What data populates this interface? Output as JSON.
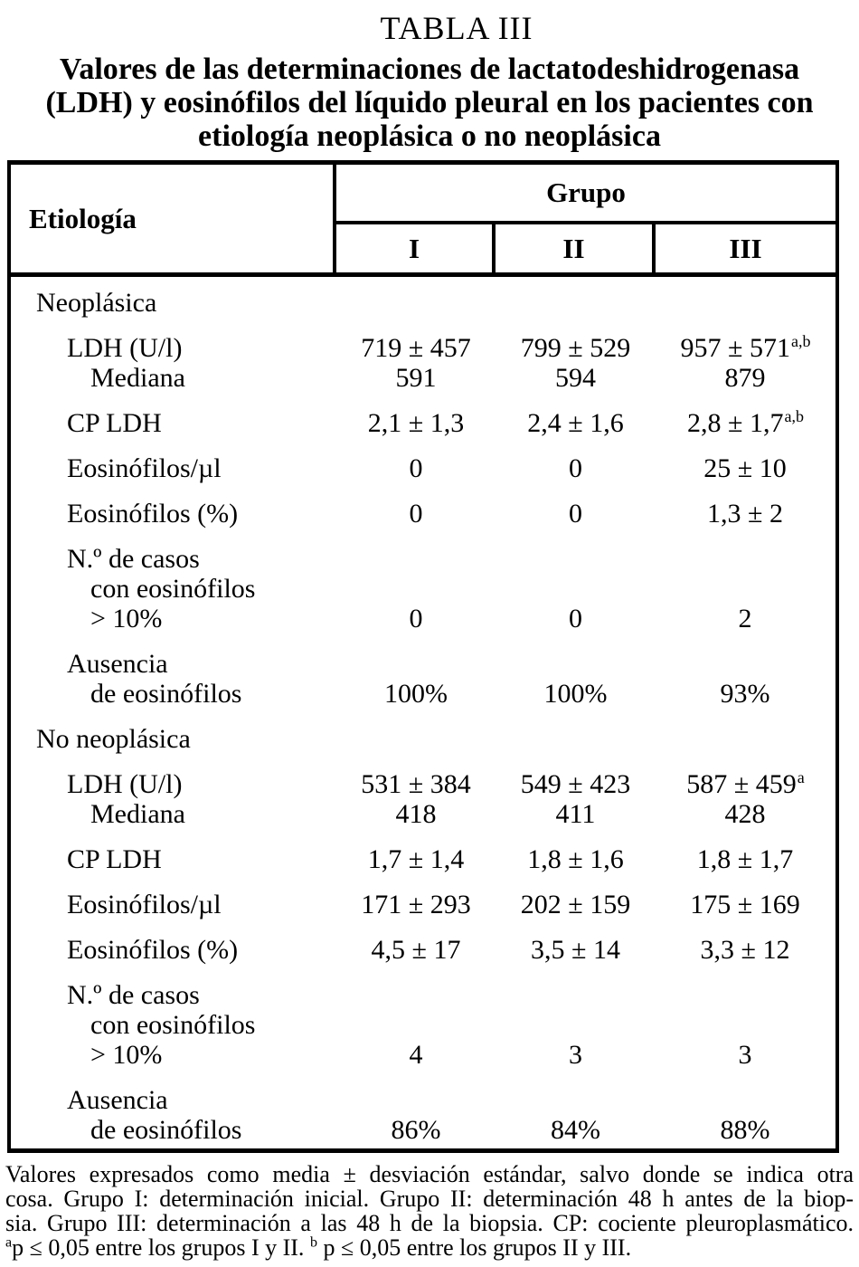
{
  "title": {
    "label": "TABLA III",
    "caption_lines": [
      "Valores de las determinaciones de lactatodeshidrogenasa",
      "(LDH) y eosinófilos del líquido pleural en los pacientes con",
      "etiología neoplásica o no neoplásica"
    ]
  },
  "table": {
    "row_header": "Etiología",
    "group_header": "Grupo",
    "columns": [
      "I",
      "II",
      "III"
    ],
    "rows": [
      {
        "label": "Neoplásica",
        "indent": 0,
        "gap": false,
        "values": [
          "",
          "",
          ""
        ],
        "sup": ""
      },
      {
        "label": "LDH (U/l)",
        "indent": 1,
        "gap": true,
        "values": [
          "719 ± 457",
          "799 ± 529",
          "957 ± 571"
        ],
        "sup": "a,b"
      },
      {
        "label": "Mediana",
        "indent": 2,
        "gap": false,
        "values": [
          "591",
          "594",
          "879"
        ],
        "sup": ""
      },
      {
        "label": "CP LDH",
        "indent": 1,
        "gap": true,
        "values": [
          "2,1 ± 1,3",
          "2,4 ± 1,6",
          "2,8 ± 1,7"
        ],
        "sup": "a,b"
      },
      {
        "label": "Eosinófilos/µl",
        "indent": 1,
        "gap": true,
        "values": [
          "0",
          "0",
          "25 ± 10"
        ],
        "sup": ""
      },
      {
        "label": "Eosinófilos (%)",
        "indent": 1,
        "gap": true,
        "values": [
          "0",
          "0",
          "1,3 ± 2"
        ],
        "sup": ""
      },
      {
        "label": "N.º de casos",
        "indent": 1,
        "gap": true,
        "values": [
          "",
          "",
          ""
        ],
        "sup": ""
      },
      {
        "label": "con eosinófilos",
        "indent": 2,
        "gap": false,
        "values": [
          "",
          "",
          ""
        ],
        "sup": ""
      },
      {
        "label": "> 10%",
        "indent": 2,
        "gap": false,
        "values": [
          "0",
          "0",
          "2"
        ],
        "sup": ""
      },
      {
        "label": "Ausencia",
        "indent": 1,
        "gap": true,
        "values": [
          "",
          "",
          ""
        ],
        "sup": ""
      },
      {
        "label": "de eosinófilos",
        "indent": 2,
        "gap": false,
        "values": [
          "100%",
          "100%",
          "93%"
        ],
        "sup": ""
      },
      {
        "label": "No neoplásica",
        "indent": 0,
        "gap": true,
        "values": [
          "",
          "",
          ""
        ],
        "sup": ""
      },
      {
        "label": "LDH (U/l)",
        "indent": 1,
        "gap": true,
        "values": [
          "531 ± 384",
          "549 ± 423",
          "587 ± 459"
        ],
        "sup": "a"
      },
      {
        "label": "Mediana",
        "indent": 2,
        "gap": false,
        "values": [
          "418",
          "411",
          "428"
        ],
        "sup": ""
      },
      {
        "label": "CP LDH",
        "indent": 1,
        "gap": true,
        "values": [
          "1,7 ± 1,4",
          "1,8 ± 1,6",
          "1,8 ± 1,7"
        ],
        "sup": ""
      },
      {
        "label": "Eosinófilos/µl",
        "indent": 1,
        "gap": true,
        "values": [
          "171 ± 293",
          "202 ± 159",
          "175 ± 169"
        ],
        "sup": ""
      },
      {
        "label": "Eosinófilos (%)",
        "indent": 1,
        "gap": true,
        "values": [
          "4,5 ± 17",
          "3,5 ± 14",
          "3,3 ± 12"
        ],
        "sup": ""
      },
      {
        "label": "N.º de casos",
        "indent": 1,
        "gap": true,
        "values": [
          "",
          "",
          ""
        ],
        "sup": ""
      },
      {
        "label": "con eosinófilos",
        "indent": 2,
        "gap": false,
        "values": [
          "",
          "",
          ""
        ],
        "sup": ""
      },
      {
        "label": "> 10%",
        "indent": 2,
        "gap": false,
        "values": [
          "4",
          "3",
          "3"
        ],
        "sup": ""
      },
      {
        "label": "Ausencia",
        "indent": 1,
        "gap": true,
        "values": [
          "",
          "",
          ""
        ],
        "sup": ""
      },
      {
        "label": "de eosinófilos",
        "indent": 2,
        "gap": false,
        "values": [
          "86%",
          "84%",
          "88%"
        ],
        "sup": ""
      }
    ]
  },
  "footnote": {
    "lines": [
      "Valores expresados como media ± desviación estándar, salvo donde se indica otra",
      "cosa. Grupo I: determinación inicial. Grupo II: determinación 48 h antes de la biop-",
      "sia. Grupo III: determinación a las 48 h de la biopsia. CP: cociente pleuroplasmático."
    ],
    "sig": {
      "sup_a": "a",
      "text_a": "p ≤ 0,05 entre los grupos I y II.",
      "sup_b": "b",
      "text_b": "p ≤ 0,05 entre los grupos II y III."
    }
  }
}
